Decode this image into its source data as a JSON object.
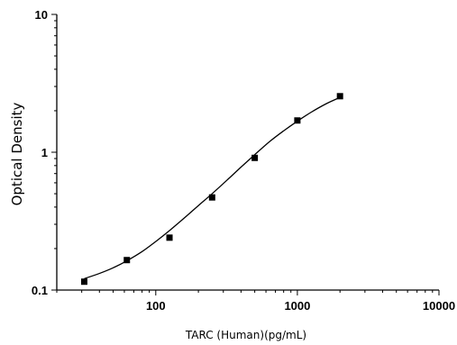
{
  "chart_data": {
    "type": "scatter",
    "xlabel": "TARC (Human)(pg/mL)",
    "ylabel": "Optical Density",
    "xscale": "log",
    "yscale": "log",
    "xlim": [
      20,
      10000
    ],
    "ylim": [
      0.1,
      10
    ],
    "xticks": [
      100,
      1000,
      10000
    ],
    "xtick_labels": [
      "100",
      "1000",
      "10000"
    ],
    "yticks": [
      0.1,
      1,
      10
    ],
    "ytick_labels": [
      "0.1",
      "1",
      "10"
    ],
    "grid": false,
    "series": [
      {
        "marker": "square",
        "color": "#000000",
        "x": [
          31.25,
          62.5,
          125,
          250,
          500,
          1000,
          2000
        ],
        "y": [
          0.115,
          0.165,
          0.24,
          0.47,
          0.91,
          1.7,
          2.55
        ]
      }
    ],
    "fit_curve": {
      "type": "line",
      "color": "#000000",
      "x": [
        31.25,
        40,
        50,
        62.5,
        80,
        100,
        125,
        160,
        200,
        250,
        320,
        400,
        500,
        640,
        800,
        1000,
        1250,
        1600,
        2000
      ],
      "y": [
        0.121,
        0.132,
        0.145,
        0.163,
        0.19,
        0.225,
        0.27,
        0.335,
        0.41,
        0.5,
        0.63,
        0.78,
        0.96,
        1.2,
        1.43,
        1.68,
        1.95,
        2.25,
        2.5
      ]
    }
  }
}
